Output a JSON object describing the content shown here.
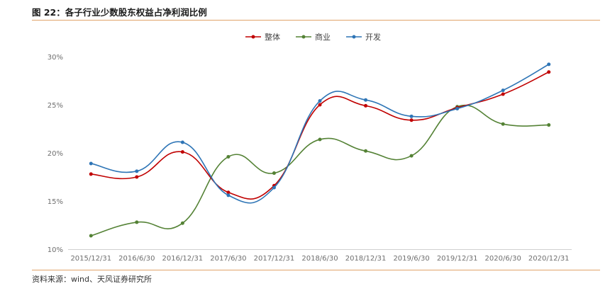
{
  "figure_title": "图 22：各子行业少数股东权益占净利润比例",
  "source_note": "资料来源：wind、天风证券研究所",
  "chart_data": {
    "type": "line",
    "categories": [
      "2015/12/31",
      "2016/6/30",
      "2016/12/31",
      "2017/6/30",
      "2017/12/31",
      "2018/6/30",
      "2018/12/31",
      "2019/6/30",
      "2019/12/31",
      "2020/6/30",
      "2020/12/31"
    ],
    "ylim": [
      10,
      30
    ],
    "yticks": [
      10,
      15,
      20,
      25,
      30
    ],
    "ytick_labels": [
      "10%",
      "15%",
      "20%",
      "25%",
      "30%"
    ],
    "smooth": true,
    "grid": false,
    "legend_position": "top-center",
    "series": [
      {
        "name": "整体",
        "color": "#c00000",
        "values": [
          17.8,
          17.5,
          20.1,
          15.9,
          16.6,
          25.0,
          24.9,
          23.4,
          24.7,
          26.1,
          28.4
        ]
      },
      {
        "name": "商业",
        "color": "#548235",
        "values": [
          11.4,
          12.8,
          12.7,
          19.6,
          17.9,
          21.4,
          20.2,
          19.7,
          24.8,
          23.0,
          22.9
        ]
      },
      {
        "name": "开发",
        "color": "#2e75b6",
        "values": [
          18.9,
          18.1,
          21.1,
          15.6,
          16.4,
          25.4,
          25.5,
          23.8,
          24.6,
          26.5,
          29.2
        ]
      }
    ]
  }
}
